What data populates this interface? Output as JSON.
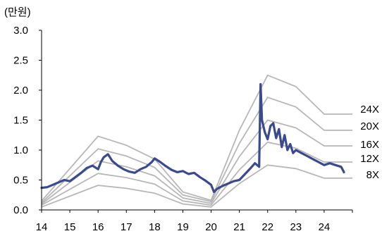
{
  "chart_data": {
    "type": "line",
    "unit_label": "(만원)",
    "x_ticks": [
      "14",
      "15",
      "16",
      "17",
      "18",
      "19",
      "20",
      "21",
      "22",
      "23",
      "24"
    ],
    "xlim": [
      14,
      25
    ],
    "y_ticks": [
      "0.0",
      "0.5",
      "1.0",
      "1.5",
      "2.0",
      "2.5",
      "3.0"
    ],
    "ylim": [
      0,
      3.0
    ],
    "grid": false,
    "colors": {
      "band": "#b7b7b7",
      "price": "#3b4a8c",
      "axis": "#000000"
    },
    "band_labels": [
      "24X",
      "20X",
      "16X",
      "12X",
      "8X"
    ],
    "band_x": [
      14.0,
      16.0,
      17.0,
      18.0,
      19.0,
      20.0,
      21.0,
      22.0,
      23.0,
      24.0,
      24.7
    ],
    "bands": [
      {
        "name": "24X",
        "values": [
          0.15,
          1.23,
          1.08,
          0.85,
          0.3,
          0.16,
          1.33,
          2.25,
          2.06,
          1.6,
          1.6
        ]
      },
      {
        "name": "20X",
        "values": [
          0.12,
          1.02,
          0.9,
          0.71,
          0.25,
          0.14,
          1.11,
          1.88,
          1.72,
          1.33,
          1.33
        ]
      },
      {
        "name": "16X",
        "values": [
          0.1,
          0.82,
          0.72,
          0.57,
          0.2,
          0.11,
          0.89,
          1.5,
          1.37,
          1.07,
          1.07
        ]
      },
      {
        "name": "12X",
        "values": [
          0.08,
          0.61,
          0.54,
          0.43,
          0.15,
          0.08,
          0.67,
          1.13,
          1.03,
          0.8,
          0.8
        ]
      },
      {
        "name": "8X",
        "values": [
          0.05,
          0.41,
          0.36,
          0.28,
          0.1,
          0.05,
          0.44,
          0.75,
          0.69,
          0.53,
          0.53
        ]
      }
    ],
    "price": {
      "x": [
        14.0,
        14.2,
        14.4,
        14.6,
        14.8,
        15.0,
        15.2,
        15.4,
        15.6,
        15.8,
        16.0,
        16.1,
        16.2,
        16.35,
        16.5,
        16.7,
        16.9,
        17.1,
        17.3,
        17.5,
        17.7,
        17.9,
        18.0,
        18.2,
        18.4,
        18.6,
        18.8,
        19.0,
        19.2,
        19.4,
        19.6,
        19.8,
        20.0,
        20.1,
        20.2,
        20.4,
        20.6,
        20.8,
        21.0,
        21.2,
        21.4,
        21.55,
        21.7,
        21.75,
        21.8,
        21.9,
        22.0,
        22.1,
        22.2,
        22.3,
        22.4,
        22.5,
        22.6,
        22.7,
        22.8,
        22.9,
        23.0,
        23.2,
        23.4,
        23.6,
        23.8,
        24.0,
        24.2,
        24.4,
        24.6,
        24.7
      ],
      "y": [
        0.37,
        0.38,
        0.42,
        0.46,
        0.5,
        0.48,
        0.55,
        0.62,
        0.7,
        0.74,
        0.68,
        0.8,
        0.88,
        0.93,
        0.82,
        0.74,
        0.68,
        0.64,
        0.62,
        0.68,
        0.72,
        0.8,
        0.86,
        0.8,
        0.73,
        0.67,
        0.63,
        0.65,
        0.6,
        0.62,
        0.55,
        0.49,
        0.42,
        0.3,
        0.35,
        0.4,
        0.44,
        0.48,
        0.5,
        0.6,
        0.7,
        0.78,
        0.72,
        2.1,
        1.5,
        1.3,
        1.18,
        1.4,
        1.45,
        1.2,
        1.35,
        1.05,
        1.25,
        1.0,
        1.1,
        0.95,
        1.0,
        0.95,
        0.9,
        0.85,
        0.8,
        0.75,
        0.78,
        0.75,
        0.72,
        0.63
      ]
    }
  }
}
